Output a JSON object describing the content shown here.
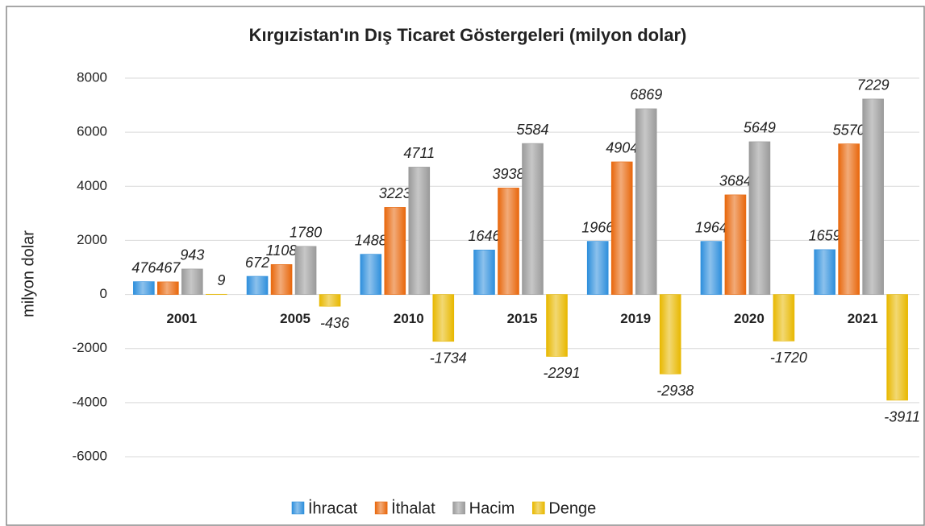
{
  "chart_data": {
    "type": "bar",
    "title": "Kırgızistan'ın Dış Ticaret Göstergeleri  (milyon dolar)",
    "y_label": "milyon dolar",
    "categories": [
      "2001",
      "2005",
      "2010",
      "2015",
      "2019",
      "2020",
      "2021"
    ],
    "series": [
      {
        "name": "İhracat",
        "color": "#2e8fdc",
        "values": [
          476,
          672,
          1488,
          1646,
          1966,
          1964,
          1659
        ]
      },
      {
        "name": "İthalat",
        "color": "#e8670c",
        "values": [
          467,
          1108,
          3223,
          3938,
          4904,
          3684,
          5570
        ]
      },
      {
        "name": "Hacim",
        "color": "#9a9a9a",
        "values": [
          943,
          1780,
          4711,
          5584,
          6869,
          5649,
          7229
        ]
      },
      {
        "name": "Denge",
        "color": "#e8b800",
        "values": [
          9,
          -436,
          -1734,
          -2291,
          -2938,
          -1720,
          -3911
        ]
      }
    ],
    "ylim": [
      -6000,
      8000
    ],
    "yticks": [
      -6000,
      -4000,
      -2000,
      0,
      2000,
      4000,
      6000,
      8000
    ],
    "grid": true
  }
}
